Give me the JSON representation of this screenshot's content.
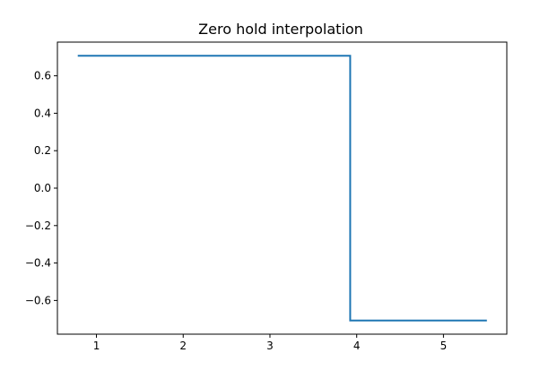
{
  "chart_data": {
    "type": "line",
    "title": "Zero hold interpolation",
    "xlabel": "",
    "ylabel": "",
    "xlim": [
      0.55,
      5.73
    ],
    "ylim": [
      -0.78,
      0.78
    ],
    "grid": false,
    "x_ticks": [
      1,
      2,
      3,
      4,
      5
    ],
    "y_ticks": [
      -0.6,
      -0.4,
      -0.2,
      0.0,
      0.2,
      0.4,
      0.6
    ],
    "x_tick_labels": [
      "1",
      "2",
      "3",
      "4",
      "5"
    ],
    "y_tick_labels": [
      "−0.6",
      "−0.4",
      "−0.2",
      "0.0",
      "0.2",
      "0.4",
      "0.6"
    ],
    "series": [
      {
        "color": "#1f77b4",
        "interpolation": "zero-order hold",
        "x": [
          0.785,
          3.925,
          3.925,
          5.5
        ],
        "y": [
          0.707,
          0.707,
          -0.707,
          -0.707
        ]
      }
    ]
  }
}
